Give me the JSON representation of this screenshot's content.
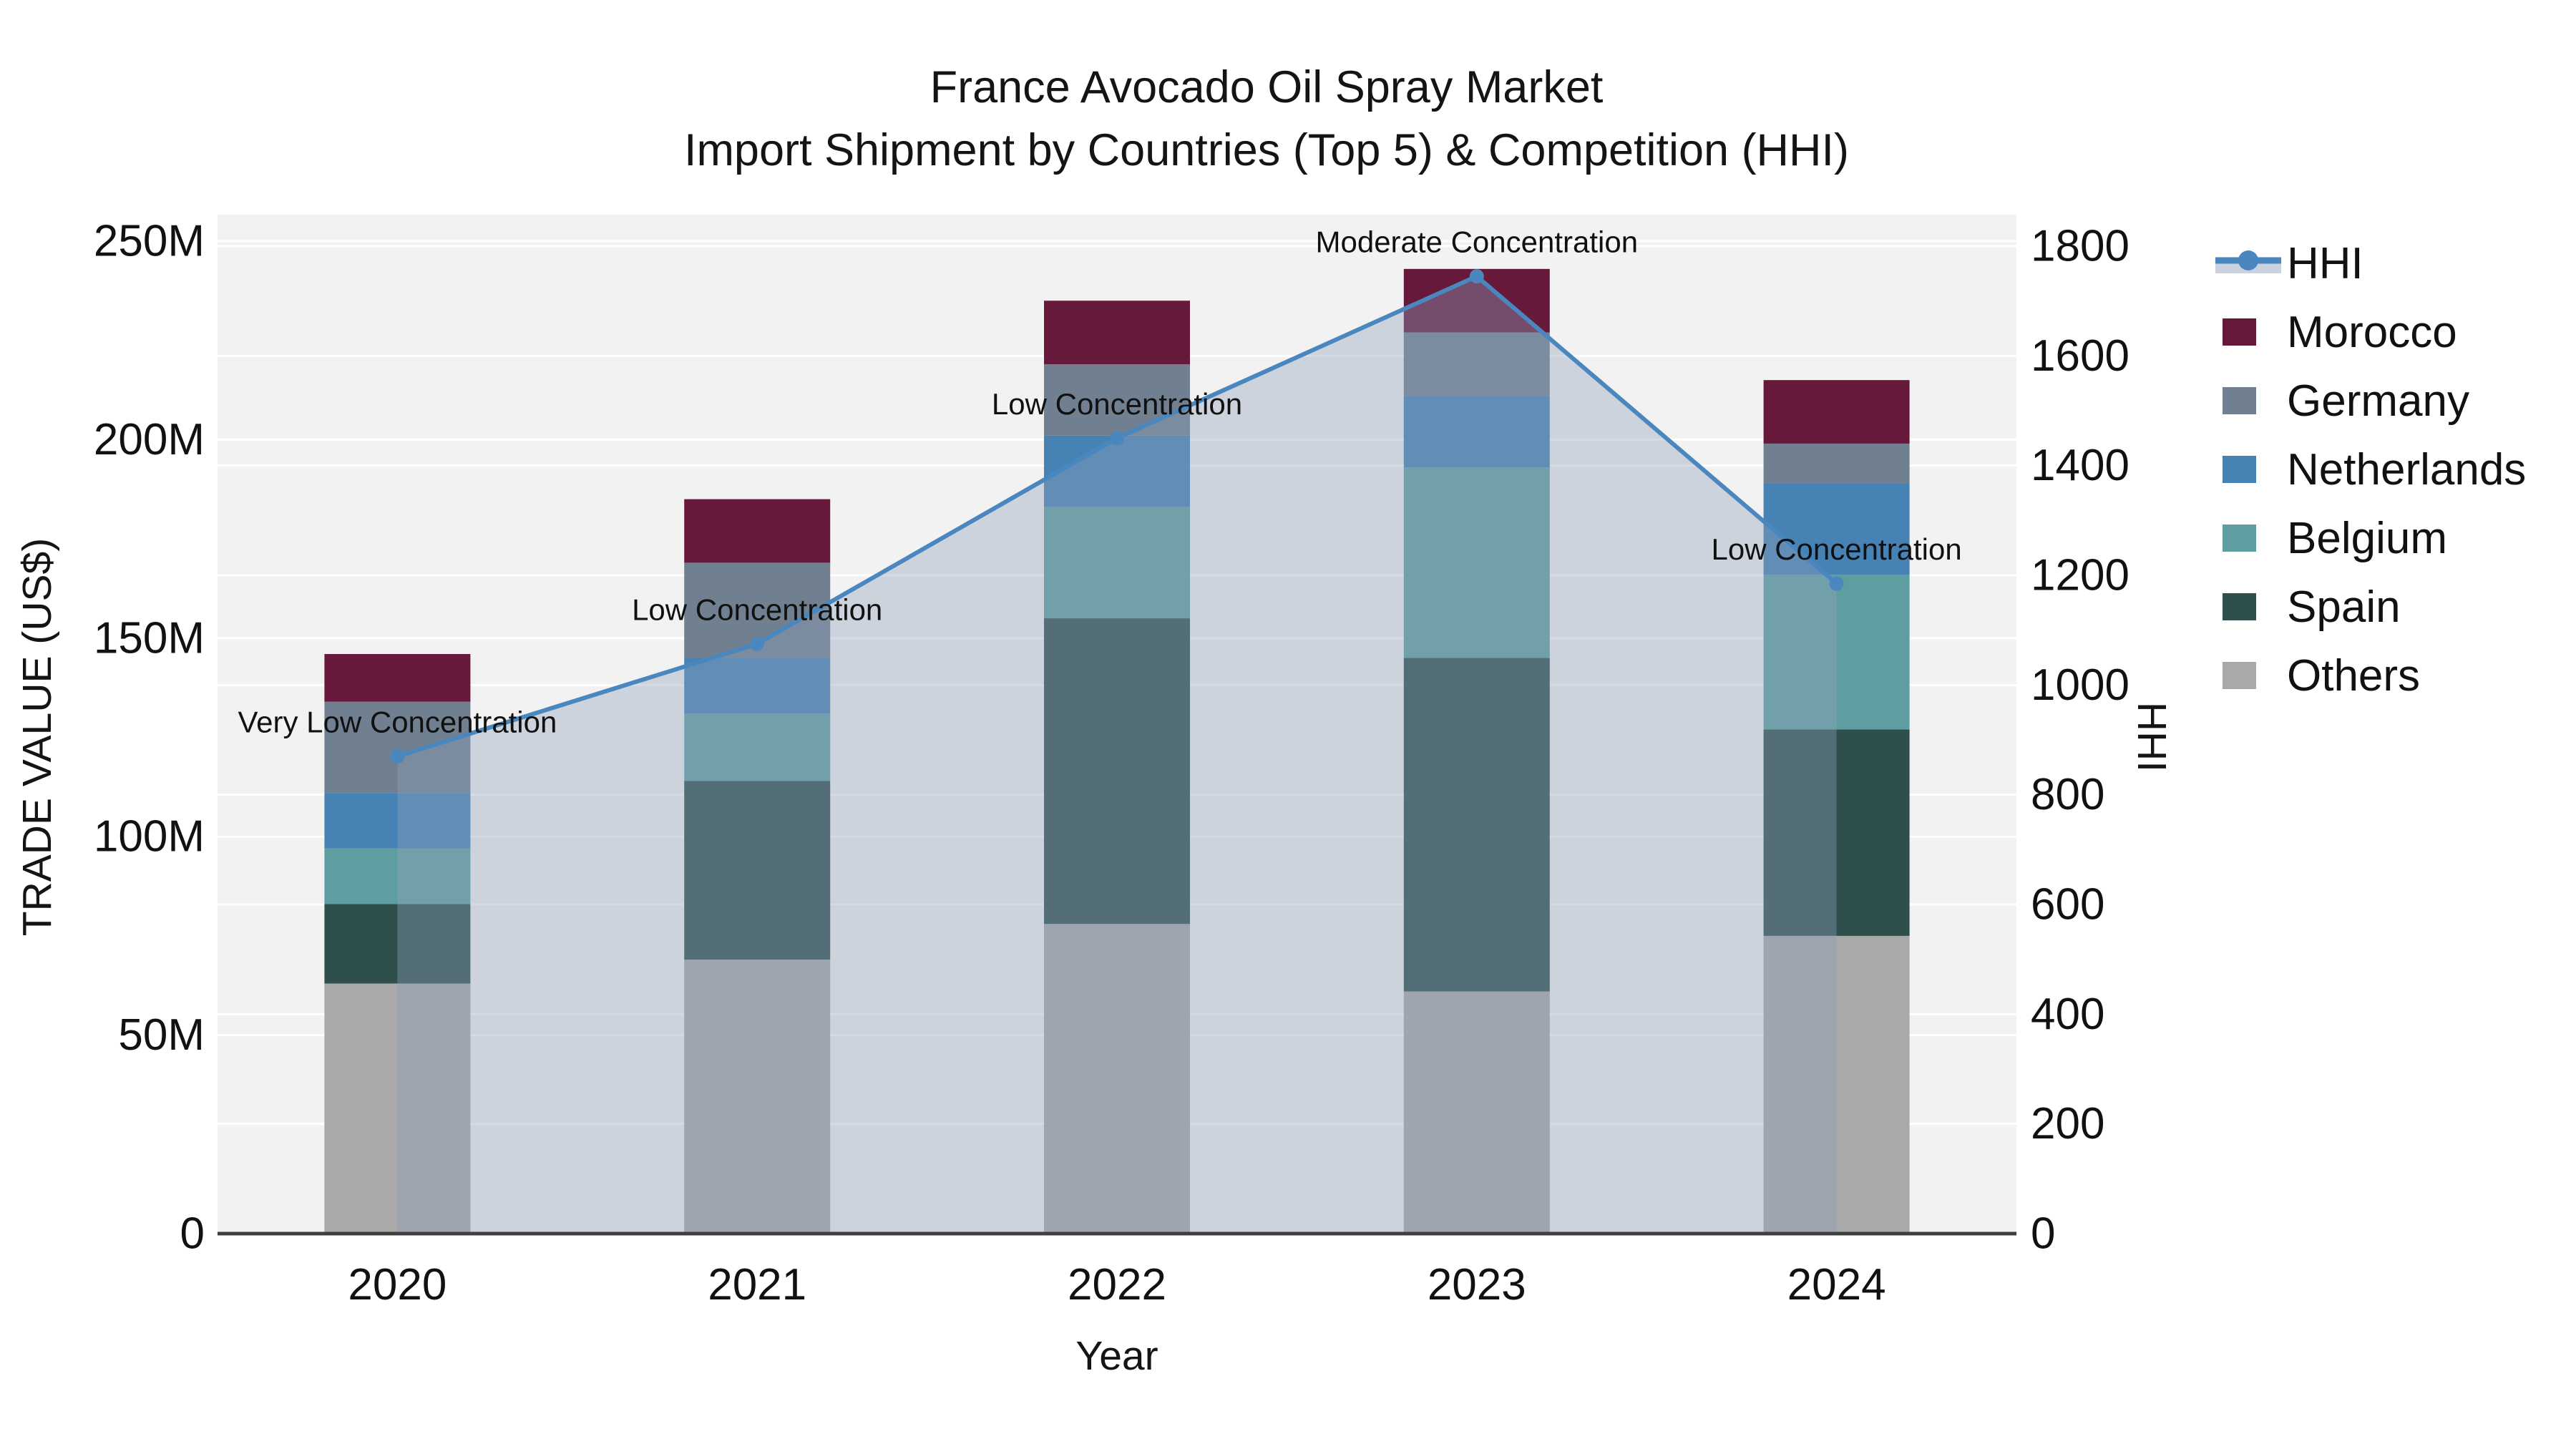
{
  "chart_data": {
    "type": "bar",
    "subtype": "stacked-bars-with-line-overlay",
    "title": "France Avocado Oil Spray Market",
    "subtitle": "Import Shipment by Countries (Top 5) & Competition (HHI)",
    "categories": [
      "2020",
      "2021",
      "2022",
      "2023",
      "2024"
    ],
    "x_axis": {
      "title": "Year"
    },
    "left_axis": {
      "title": "TRADE VALUE (US$)",
      "unit": "millions of US$",
      "min": 0,
      "max": 250,
      "ticks": [
        {
          "value": 0,
          "label": "0"
        },
        {
          "value": 50,
          "label": "50M"
        },
        {
          "value": 100,
          "label": "100M"
        },
        {
          "value": 150,
          "label": "150M"
        },
        {
          "value": 200,
          "label": "200M"
        },
        {
          "value": 250,
          "label": "250M"
        }
      ]
    },
    "right_axis": {
      "title": "HHI",
      "min": 0,
      "max": 1800,
      "ticks": [
        {
          "value": 0,
          "label": "0"
        },
        {
          "value": 200,
          "label": "200"
        },
        {
          "value": 400,
          "label": "400"
        },
        {
          "value": 600,
          "label": "600"
        },
        {
          "value": 800,
          "label": "800"
        },
        {
          "value": 1000,
          "label": "1000"
        },
        {
          "value": 1200,
          "label": "1200"
        },
        {
          "value": 1400,
          "label": "1400"
        },
        {
          "value": 1600,
          "label": "1600"
        },
        {
          "value": 1800,
          "label": "1800"
        }
      ]
    },
    "stack_order_bottom_to_top": [
      "Others",
      "Spain",
      "Belgium",
      "Netherlands",
      "Germany",
      "Morocco"
    ],
    "series": [
      {
        "name": "Morocco",
        "type": "bar",
        "color": "#67193B",
        "values_musd": [
          12,
          16,
          16,
          16,
          16
        ]
      },
      {
        "name": "Germany",
        "type": "bar",
        "color": "#708090",
        "values_musd": [
          23,
          24,
          18,
          16,
          10
        ]
      },
      {
        "name": "Netherlands",
        "type": "bar",
        "color": "#4682B4",
        "values_musd": [
          14,
          14,
          18,
          18,
          23
        ]
      },
      {
        "name": "Belgium",
        "type": "bar",
        "color": "#5F9EA0",
        "values_musd": [
          14,
          17,
          28,
          48,
          39
        ]
      },
      {
        "name": "Spain",
        "type": "bar",
        "color": "#2F4F4C",
        "values_musd": [
          20,
          45,
          77,
          84,
          52
        ]
      },
      {
        "name": "Others",
        "type": "bar",
        "color": "#A9A9A9",
        "values_musd": [
          63,
          69,
          78,
          61,
          75
        ]
      }
    ],
    "bar_totals_musd": [
      146,
      185,
      235,
      243,
      215
    ],
    "hhi_series": {
      "name": "HHI",
      "type": "line",
      "color": "#4A87BE",
      "marker": "circle",
      "area_fill_color": "#8FA0BA",
      "area_fill_opacity": 0.38,
      "values": [
        870,
        1075,
        1450,
        1745,
        1185
      ]
    },
    "annotations": [
      {
        "category": "2020",
        "text": "Very Low Concentration"
      },
      {
        "category": "2021",
        "text": "Low Concentration"
      },
      {
        "category": "2022",
        "text": "Low Concentration"
      },
      {
        "category": "2023",
        "text": "Moderate Concentration"
      },
      {
        "category": "2024",
        "text": "Low Concentration"
      }
    ],
    "legend_order": [
      "HHI",
      "Morocco",
      "Germany",
      "Netherlands",
      "Belgium",
      "Spain",
      "Others"
    ],
    "legend_position": "right",
    "grid": true,
    "colors": {
      "plot_background": "#F2F2F2",
      "gridline": "#FFFFFF",
      "axis_line": "#3F3F3F",
      "text": "#111111",
      "legend_hhi_band": "#C9D2DE"
    }
  }
}
